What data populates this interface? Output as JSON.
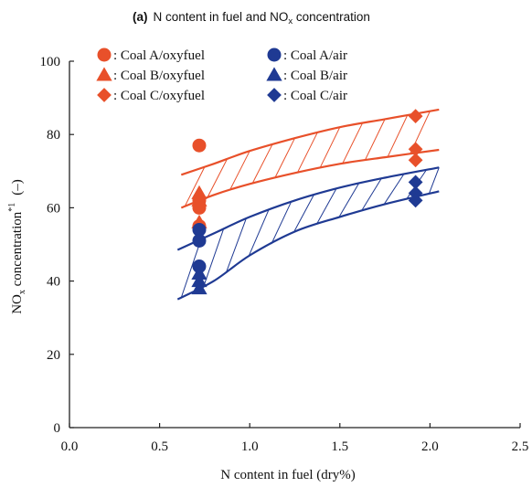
{
  "colors": {
    "oxyfuel": "#e8502a",
    "air": "#1f3a93",
    "axis": "#222222"
  },
  "chart_data": {
    "type": "scatter",
    "title_prefix": "(a)",
    "title_main": "N content in fuel and NO",
    "title_sub": "x",
    "title_suffix": " concentration",
    "xlabel": "N content in fuel (dry%)",
    "ylabel_main": "NO",
    "ylabel_sub": "x",
    "ylabel_rest": " concentration",
    "ylabel_sup": "*1",
    "ylabel_unit": "(–)",
    "xlim": [
      0,
      2.5
    ],
    "ylim": [
      0,
      100
    ],
    "x_ticks": [
      "0.0",
      "0.5",
      "1.0",
      "1.5",
      "2.0",
      "2.5"
    ],
    "y_ticks": [
      "0",
      "20",
      "40",
      "60",
      "80",
      "100"
    ],
    "series": [
      {
        "name": ": Coal A/oxyfuel",
        "marker": "circle",
        "group": "oxyfuel",
        "points": [
          [
            0.72,
            77
          ],
          [
            0.72,
            62
          ],
          [
            0.72,
            60
          ],
          [
            0.72,
            55
          ]
        ]
      },
      {
        "name": ": Coal B/oxyfuel",
        "marker": "triangle",
        "group": "oxyfuel",
        "points": [
          [
            0.72,
            64
          ],
          [
            0.72,
            62
          ],
          [
            0.72,
            56
          ]
        ]
      },
      {
        "name": ": Coal C/oxyfuel",
        "marker": "diamond",
        "group": "oxyfuel",
        "points": [
          [
            1.92,
            85
          ],
          [
            1.92,
            76
          ],
          [
            1.92,
            73
          ]
        ]
      },
      {
        "name": ": Coal A/air",
        "marker": "circle",
        "group": "air",
        "points": [
          [
            0.72,
            54
          ],
          [
            0.72,
            51
          ],
          [
            0.72,
            44
          ]
        ]
      },
      {
        "name": ": Coal B/air",
        "marker": "triangle",
        "group": "air",
        "points": [
          [
            0.72,
            42
          ],
          [
            0.72,
            40
          ],
          [
            0.72,
            38
          ]
        ]
      },
      {
        "name": ": Coal C/air",
        "marker": "diamond",
        "group": "air",
        "points": [
          [
            1.92,
            67
          ],
          [
            1.92,
            64
          ],
          [
            1.92,
            62
          ]
        ]
      }
    ],
    "bands": [
      {
        "group": "oxyfuel",
        "upper": [
          [
            0.62,
            69
          ],
          [
            0.8,
            72
          ],
          [
            1.0,
            75.5
          ],
          [
            1.25,
            79
          ],
          [
            1.5,
            82
          ],
          [
            1.75,
            84.2
          ],
          [
            2.05,
            86.8
          ]
        ],
        "lower": [
          [
            0.62,
            60
          ],
          [
            0.8,
            63.5
          ],
          [
            1.0,
            66.5
          ],
          [
            1.25,
            69.5
          ],
          [
            1.5,
            72
          ],
          [
            1.75,
            73.8
          ],
          [
            2.05,
            75.8
          ]
        ]
      },
      {
        "group": "air",
        "upper": [
          [
            0.6,
            48.5
          ],
          [
            0.8,
            53
          ],
          [
            1.0,
            57.5
          ],
          [
            1.25,
            62
          ],
          [
            1.5,
            65.5
          ],
          [
            1.75,
            68.2
          ],
          [
            2.05,
            71
          ]
        ],
        "lower": [
          [
            0.6,
            35
          ],
          [
            0.8,
            40
          ],
          [
            1.0,
            47
          ],
          [
            1.25,
            53.5
          ],
          [
            1.5,
            57.5
          ],
          [
            1.75,
            61
          ],
          [
            2.05,
            64.5
          ]
        ]
      }
    ],
    "grid": false,
    "legend_position": "top-left"
  }
}
